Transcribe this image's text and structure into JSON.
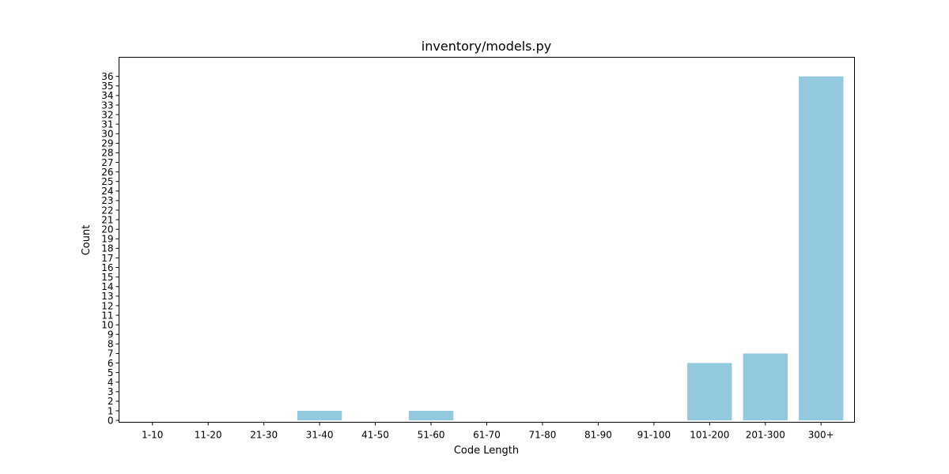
{
  "chart_data": {
    "type": "bar",
    "title": "inventory/models.py",
    "xlabel": "Code Length",
    "ylabel": "Count",
    "categories": [
      "1-10",
      "11-20",
      "21-30",
      "31-40",
      "41-50",
      "51-60",
      "61-70",
      "71-80",
      "81-90",
      "91-100",
      "101-200",
      "201-300",
      "300+"
    ],
    "values": [
      0,
      0,
      0,
      1,
      0,
      1,
      0,
      0,
      0,
      0,
      6,
      7,
      36
    ],
    "ylim": [
      0,
      36
    ],
    "yticks": [
      0,
      1,
      2,
      3,
      4,
      5,
      6,
      7,
      8,
      9,
      10,
      11,
      12,
      13,
      14,
      15,
      16,
      17,
      18,
      19,
      20,
      21,
      22,
      23,
      24,
      25,
      26,
      27,
      28,
      29,
      30,
      31,
      32,
      33,
      34,
      35,
      36
    ],
    "bar_color": "#92c9df",
    "grid": false,
    "legend": false
  }
}
